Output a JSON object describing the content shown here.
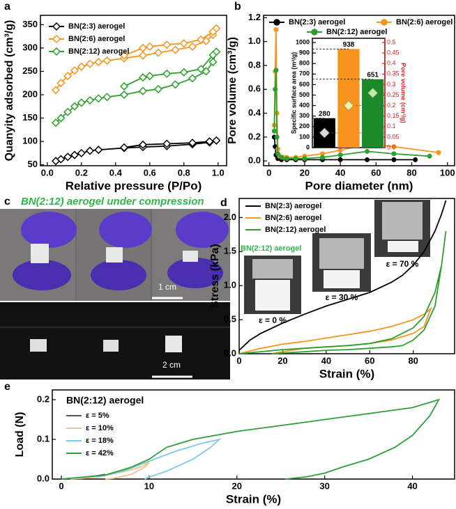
{
  "chart_data": [
    {
      "type": "line",
      "panel": "a",
      "x_label": "Relative pressure (P/Po)",
      "y_label": "Quanyity adsorbed (cm³/g)",
      "xlim": [
        -0.04,
        1.05
      ],
      "ylim": [
        48,
        370
      ],
      "xticks": [
        {
          "value": 0,
          "label": "0.0"
        },
        0.2,
        0.4,
        0.6,
        0.8,
        {
          "value": 1,
          "label": "1.0"
        }
      ],
      "yticks": [
        50,
        100,
        150,
        200,
        250,
        300,
        350
      ],
      "legend": "upper left",
      "series": [
        {
          "name": "BN(2:3) aerogel",
          "color": "#000000",
          "marker": "diamond",
          "x": [
            0.05,
            0.08,
            0.12,
            0.16,
            0.2,
            0.25,
            0.3,
            0.45,
            0.56,
            0.7,
            0.85,
            0.95,
            0.99,
            0.95,
            0.85,
            0.7,
            0.56,
            0.45
          ],
          "values": [
            58,
            62,
            67,
            71,
            75,
            80,
            82,
            86,
            88,
            90,
            94,
            98,
            102,
            100,
            97,
            95,
            93,
            87
          ]
        },
        {
          "name": "BN(2:6) aerogel",
          "color": "#f7941d",
          "marker": "diamond",
          "x": [
            0.05,
            0.08,
            0.12,
            0.16,
            0.2,
            0.25,
            0.3,
            0.35,
            0.45,
            0.56,
            0.65,
            0.75,
            0.85,
            0.93,
            0.97,
            0.99,
            0.97,
            0.9,
            0.8,
            0.7,
            0.6,
            0.56,
            0.45
          ],
          "values": [
            210,
            225,
            240,
            252,
            260,
            266,
            270,
            273,
            278,
            284,
            290,
            296,
            303,
            315,
            328,
            342,
            335,
            318,
            310,
            307,
            303,
            300,
            284
          ]
        },
        {
          "name": "BN(2:12) aerogel",
          "color": "#2ca02c",
          "marker": "diamond",
          "x": [
            0.05,
            0.08,
            0.12,
            0.16,
            0.2,
            0.25,
            0.3,
            0.35,
            0.45,
            0.56,
            0.65,
            0.75,
            0.85,
            0.93,
            0.97,
            0.99,
            0.97,
            0.9,
            0.8,
            0.7,
            0.6,
            0.56,
            0.45
          ],
          "values": [
            140,
            150,
            163,
            175,
            183,
            188,
            192,
            195,
            200,
            208,
            212,
            222,
            235,
            250,
            270,
            292,
            285,
            255,
            248,
            245,
            240,
            237,
            218
          ]
        }
      ]
    },
    {
      "type": "line",
      "panel": "b",
      "x_label": "Pore diameter (nm)",
      "y_label": "Pore volume (cm³/g)",
      "xlim": [
        -3,
        104
      ],
      "ylim": [
        -0.04,
        1.22
      ],
      "xticks": [
        0,
        20,
        40,
        60,
        80,
        100
      ],
      "yticks": [
        {
          "value": 0,
          "label": "0.0"
        },
        0.2,
        0.4,
        0.6,
        0.8,
        {
          "value": 1,
          "label": "1.0"
        },
        1.2
      ],
      "legend": "upper center",
      "series": [
        {
          "name": "BN(2:3) aerogel",
          "color": "#000000",
          "marker": "circle",
          "x": [
            3,
            3.5,
            4,
            5,
            7,
            10,
            15,
            20,
            30,
            40,
            55,
            70,
            82
          ],
          "values": [
            0.2,
            0.12,
            0.05,
            0.02,
            0.01,
            0.01,
            0.01,
            0.01,
            0.01,
            0.01,
            0.01,
            0.01,
            0.01
          ]
        },
        {
          "name": "BN(2:6) aerogel",
          "color": "#f7941d",
          "marker": "circle",
          "x": [
            3,
            3.5,
            4,
            4.5,
            5,
            6,
            8,
            10,
            15,
            20,
            30,
            40,
            55,
            70,
            95
          ],
          "values": [
            0.3,
            0.75,
            1.1,
            0.4,
            0.1,
            0.04,
            0.03,
            0.03,
            0.03,
            0.04,
            0.06,
            0.09,
            0.14,
            0.12,
            0.07
          ]
        },
        {
          "name": "BN(2:12) aerogel",
          "color": "#2ca02c",
          "marker": "circle",
          "x": [
            3,
            3.5,
            4,
            4.5,
            5,
            7,
            10,
            15,
            20,
            30,
            40,
            55,
            70,
            90
          ],
          "values": [
            0.25,
            0.6,
            0.76,
            0.2,
            0.06,
            0.03,
            0.02,
            0.02,
            0.02,
            0.03,
            0.05,
            0.08,
            0.06,
            0.04
          ]
        }
      ]
    },
    {
      "type": "bar",
      "y_label": "Specific surface area (m²/g)",
      "y2_label": "Pore volume (cm³/g)",
      "categories": [
        null,
        null,
        null
      ],
      "values": [
        280,
        938,
        651
      ],
      "colors": [
        "#000000",
        "#f7941d",
        "#1a8a2a"
      ],
      "y2_values": [
        0.07,
        0.2,
        0.26
      ],
      "marker_colors": [
        "#d8d8d8",
        "#f5f0a0",
        "#b8f0a0"
      ],
      "y2_color": "#e02020",
      "ylim": [
        0,
        1040
      ],
      "yticks": [
        0,
        100,
        200,
        300,
        400,
        500,
        600,
        700,
        800,
        900,
        1000
      ],
      "y2lim": [
        0,
        0.52
      ],
      "y2ticks": [
        {
          "value": 0,
          "label": "0.0"
        },
        0.05,
        0.1,
        0.15,
        0.2,
        0.25,
        0.3,
        0.35,
        0.4,
        0.45,
        0.5
      ]
    },
    {
      "type": "line",
      "panel": "d",
      "x_label": "Strain (%)",
      "y_label": "Stress (kPa)",
      "xlim": [
        0,
        99
      ],
      "ylim": [
        0,
        2.28
      ],
      "xticks": [
        0,
        20,
        40,
        60,
        80
      ],
      "yticks": [
        {
          "value": 0,
          "label": "0.0"
        },
        0.5,
        {
          "value": 1,
          "label": "1.0"
        },
        1.5,
        {
          "value": 2,
          "label": "2.0"
        }
      ],
      "legend": "upper left",
      "series": [
        {
          "name": "BN(2:3) aerogel",
          "color": "#000000",
          "x": [
            0,
            5,
            10,
            20,
            30,
            40,
            50,
            60,
            70,
            75,
            80,
            85,
            90,
            93,
            95
          ],
          "values": [
            0.05,
            0.2,
            0.3,
            0.45,
            0.58,
            0.7,
            0.8,
            0.9,
            1.05,
            1.15,
            1.3,
            1.5,
            1.8,
            2.05,
            2.25
          ]
        },
        {
          "name": "BN(2:6) aerogel",
          "color": "#f7941d",
          "x": [
            0,
            10,
            20,
            30,
            40,
            50,
            60,
            70,
            80,
            85,
            88,
            85,
            80,
            70,
            60,
            50,
            40,
            30,
            20,
            15
          ],
          "values": [
            0,
            0.08,
            0.14,
            0.18,
            0.23,
            0.28,
            0.33,
            0.4,
            0.5,
            0.58,
            0.66,
            0.4,
            0.3,
            0.2,
            0.15,
            0.12,
            0.1,
            0.08,
            0.03,
            0
          ]
        },
        {
          "name": "BN(2:12) aerogel",
          "color": "#2ca02c",
          "x": [
            0,
            10,
            20,
            30,
            40,
            50,
            60,
            70,
            80,
            85,
            90,
            93,
            95,
            93,
            90,
            85,
            80,
            75,
            70,
            60,
            50,
            40,
            30,
            20,
            15
          ],
          "values": [
            0,
            0.03,
            0.06,
            0.08,
            0.1,
            0.12,
            0.15,
            0.22,
            0.38,
            0.55,
            0.9,
            1.3,
            1.8,
            1.3,
            0.7,
            0.35,
            0.2,
            0.12,
            0.1,
            0.08,
            0.06,
            0.05,
            0.03,
            0.01,
            0
          ]
        }
      ]
    },
    {
      "type": "line",
      "panel": "e",
      "x_label": "Strain (%)",
      "y_label": "Load (N)",
      "legend_title": "BN(2:12) aerogel",
      "xlim": [
        -1.03,
        44.8
      ],
      "ylim": [
        0,
        0.2246
      ],
      "xticks": [
        0,
        10,
        20,
        30,
        40
      ],
      "yticks": [
        {
          "value": 0,
          "label": "0.0"
        },
        0.1,
        0.2
      ],
      "legend": "center left",
      "series": [
        {
          "name": "ε = 5%",
          "color": "#555555",
          "x": [
            0,
            2,
            4,
            5,
            4.5,
            3,
            2
          ],
          "values": [
            0,
            0.003,
            0.008,
            0.012,
            0.01,
            0.004,
            0
          ]
        },
        {
          "name": "ε = 10%",
          "color": "#f0c090",
          "x": [
            1,
            4,
            7,
            9,
            10,
            9.5,
            8,
            6,
            5
          ],
          "values": [
            0,
            0.005,
            0.018,
            0.03,
            0.042,
            0.03,
            0.012,
            0.002,
            0
          ]
        },
        {
          "name": "ε = 18%",
          "color": "#7ec8e8",
          "x": [
            4,
            7,
            10,
            13,
            16,
            18,
            17,
            15,
            12,
            10,
            9.5
          ],
          "values": [
            0.005,
            0.02,
            0.045,
            0.07,
            0.09,
            0.1,
            0.08,
            0.05,
            0.02,
            0.005,
            0
          ]
        },
        {
          "name": "ε = 42%",
          "color": "#2e9e3a",
          "x": [
            0,
            5,
            8,
            10,
            12,
            15,
            20,
            25,
            30,
            35,
            40,
            43,
            42,
            40,
            38,
            35,
            32,
            30,
            28,
            26,
            25.5
          ],
          "values": [
            0,
            0.01,
            0.03,
            0.05,
            0.08,
            0.1,
            0.12,
            0.135,
            0.15,
            0.165,
            0.18,
            0.2,
            0.16,
            0.11,
            0.08,
            0.05,
            0.03,
            0.015,
            0.006,
            0.001,
            0
          ]
        }
      ]
    }
  ],
  "photos": {
    "c": {
      "panel": "c",
      "caption": "BN(2:12) aerogel under compression",
      "scale_bar_top": "1 cm",
      "scale_bar_bottom": "2 cm"
    },
    "d": {
      "caption": "BN(2:12) aerogel",
      "strain_labels": [
        "ε = 0 %",
        "ε = 30 %",
        "ε = 70 %"
      ]
    }
  }
}
